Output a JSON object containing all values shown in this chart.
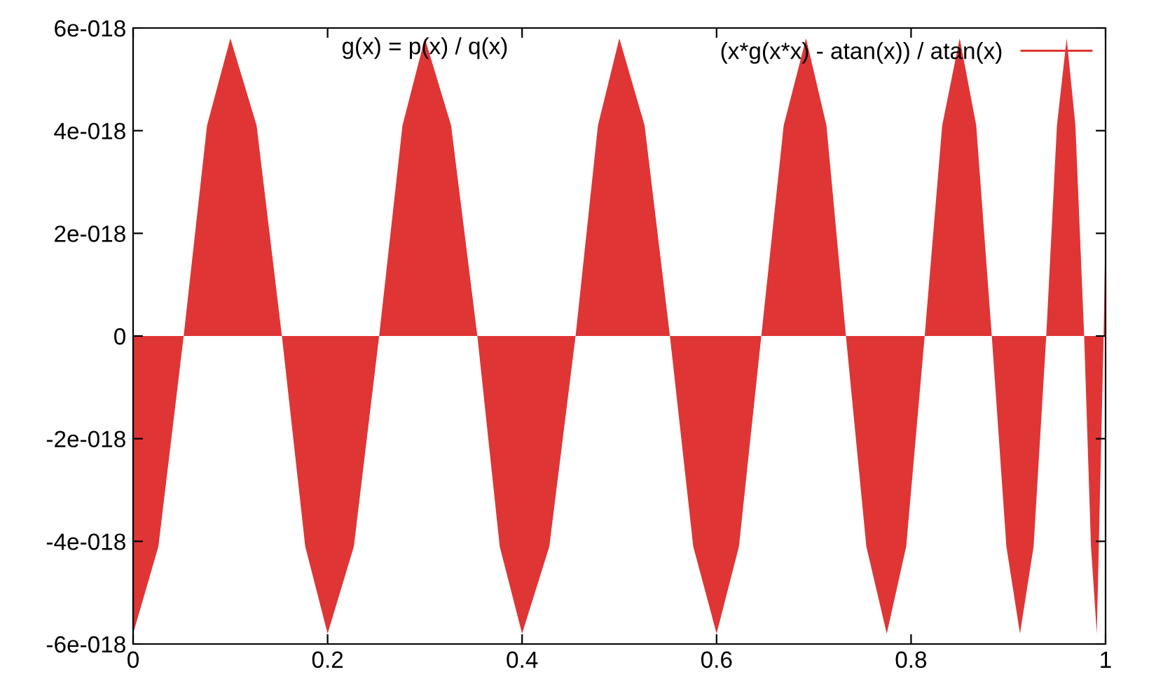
{
  "chart_data": {
    "type": "area",
    "title": "g(x) = p(x) / q(x)",
    "x": [
      0,
      0.026,
      0.052,
      0.076,
      0.1,
      0.127,
      0.153,
      0.177,
      0.2,
      0.227,
      0.253,
      0.277,
      0.3,
      0.327,
      0.354,
      0.377,
      0.4,
      0.428,
      0.455,
      0.478,
      0.5,
      0.526,
      0.552,
      0.576,
      0.6,
      0.623,
      0.646,
      0.669,
      0.692,
      0.713,
      0.733,
      0.754,
      0.775,
      0.795,
      0.814,
      0.832,
      0.85,
      0.867,
      0.883,
      0.898,
      0.912,
      0.926,
      0.939,
      0.95,
      0.96,
      0.969,
      0.978,
      0.985,
      0.991,
      0.998,
      1.0
    ],
    "series": [
      {
        "name": "(x*g(x*x) - atan(x)) / atan(x)",
        "color": "#e03535",
        "values": [
          -5.8e-18,
          -4.1e-18,
          0,
          4.1e-18,
          5.8e-18,
          4.1e-18,
          0,
          -4.1e-18,
          -5.8e-18,
          -4.1e-18,
          0,
          4.1e-18,
          5.8e-18,
          4.1e-18,
          0,
          -4.1e-18,
          -5.8e-18,
          -4.1e-18,
          0,
          4.1e-18,
          5.8e-18,
          4.1e-18,
          0,
          -4.1e-18,
          -5.8e-18,
          -4.1e-18,
          0,
          4.1e-18,
          5.8e-18,
          4.1e-18,
          0,
          -4.1e-18,
          -5.8e-18,
          -4.1e-18,
          0,
          4.1e-18,
          5.8e-18,
          4.1e-18,
          0,
          -4.1e-18,
          -5.8e-18,
          -4.1e-18,
          0,
          4.1e-18,
          5.8e-18,
          4.1e-18,
          0,
          -4.1e-18,
          -5.8e-18,
          0,
          2.2e-18
        ]
      }
    ],
    "xlim": [
      0,
      1
    ],
    "xticks": [
      0,
      0.2,
      0.4,
      0.6,
      0.8,
      1
    ],
    "ylim": [
      -6e-18,
      6e-18
    ],
    "yticks": [
      {
        "value": -6e-18,
        "label": "-6e-018"
      },
      {
        "value": -4e-18,
        "label": "-4e-018"
      },
      {
        "value": -2e-18,
        "label": "-2e-018"
      },
      0,
      {
        "value": 2e-18,
        "label": "2e-018"
      },
      {
        "value": 4e-18,
        "label": "4e-018"
      },
      {
        "value": 6e-18,
        "label": "6e-018"
      }
    ],
    "grid": false,
    "legend": "top right"
  }
}
